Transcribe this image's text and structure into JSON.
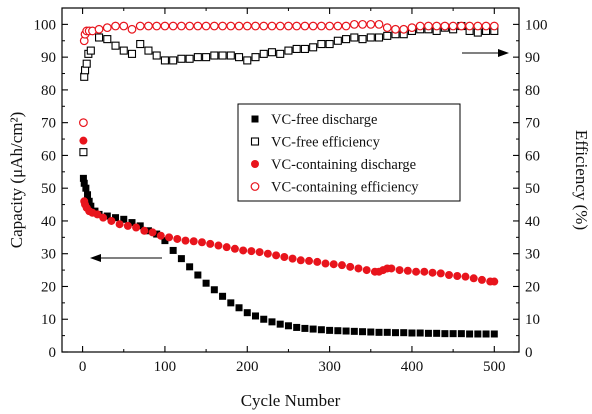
{
  "chart_data": {
    "type": "scatter",
    "xlabel": "Cycle Number",
    "ylabel_left": "Capacity (μAh/cm²)",
    "ylabel_right": "Efficiency (%)",
    "xlim": [
      -25,
      530
    ],
    "ylim_left": [
      0,
      105
    ],
    "ylim_right": [
      0,
      105
    ],
    "x_ticks": [
      0,
      100,
      200,
      300,
      400,
      500
    ],
    "y_ticks": [
      0,
      10,
      20,
      30,
      40,
      50,
      60,
      70,
      80,
      90,
      100
    ],
    "grid": false,
    "legend_position": "center",
    "colors": {
      "black": "#000000",
      "red": "#e8141c"
    },
    "series": [
      {
        "name": "VC-free discharge",
        "axis": "left",
        "marker": "filled-square",
        "color": "#000000",
        "points": [
          [
            1,
            53
          ],
          [
            2,
            51.5
          ],
          [
            4,
            50
          ],
          [
            6,
            48
          ],
          [
            8,
            46
          ],
          [
            10,
            44.5
          ],
          [
            15,
            43
          ],
          [
            20,
            42
          ],
          [
            30,
            41.5
          ],
          [
            40,
            41
          ],
          [
            50,
            40.5
          ],
          [
            60,
            39.5
          ],
          [
            70,
            38.5
          ],
          [
            80,
            37
          ],
          [
            90,
            36
          ],
          [
            100,
            34
          ],
          [
            110,
            31
          ],
          [
            120,
            28.5
          ],
          [
            130,
            26
          ],
          [
            140,
            23.5
          ],
          [
            150,
            21
          ],
          [
            160,
            19
          ],
          [
            170,
            17
          ],
          [
            180,
            15
          ],
          [
            190,
            13.5
          ],
          [
            200,
            12
          ],
          [
            210,
            11
          ],
          [
            220,
            10
          ],
          [
            230,
            9.2
          ],
          [
            240,
            8.5
          ],
          [
            250,
            8
          ],
          [
            260,
            7.5
          ],
          [
            270,
            7.2
          ],
          [
            280,
            7
          ],
          [
            290,
            6.8
          ],
          [
            300,
            6.6
          ],
          [
            310,
            6.5
          ],
          [
            320,
            6.4
          ],
          [
            330,
            6.3
          ],
          [
            340,
            6.2
          ],
          [
            350,
            6.1
          ],
          [
            360,
            6
          ],
          [
            370,
            6
          ],
          [
            380,
            5.9
          ],
          [
            390,
            5.9
          ],
          [
            400,
            5.8
          ],
          [
            410,
            5.8
          ],
          [
            420,
            5.7
          ],
          [
            430,
            5.7
          ],
          [
            440,
            5.6
          ],
          [
            450,
            5.6
          ],
          [
            460,
            5.6
          ],
          [
            470,
            5.5
          ],
          [
            480,
            5.5
          ],
          [
            490,
            5.5
          ],
          [
            500,
            5.5
          ]
        ]
      },
      {
        "name": "VC-free efficiency",
        "axis": "right",
        "marker": "open-square",
        "color": "#000000",
        "points": [
          [
            1,
            61
          ],
          [
            2,
            84
          ],
          [
            3,
            86
          ],
          [
            5,
            88
          ],
          [
            7,
            91
          ],
          [
            10,
            92
          ],
          [
            20,
            96
          ],
          [
            30,
            95.5
          ],
          [
            40,
            93.5
          ],
          [
            50,
            92
          ],
          [
            60,
            91
          ],
          [
            70,
            94
          ],
          [
            80,
            92
          ],
          [
            90,
            90.5
          ],
          [
            100,
            89
          ],
          [
            110,
            89
          ],
          [
            120,
            89.5
          ],
          [
            130,
            89.5
          ],
          [
            140,
            90
          ],
          [
            150,
            90
          ],
          [
            160,
            90.5
          ],
          [
            170,
            90.5
          ],
          [
            180,
            90.5
          ],
          [
            190,
            90
          ],
          [
            200,
            89
          ],
          [
            210,
            90
          ],
          [
            220,
            91
          ],
          [
            230,
            91.5
          ],
          [
            240,
            91
          ],
          [
            250,
            92
          ],
          [
            260,
            92.5
          ],
          [
            270,
            92.5
          ],
          [
            280,
            93
          ],
          [
            290,
            94
          ],
          [
            300,
            94
          ],
          [
            310,
            95
          ],
          [
            320,
            95.5
          ],
          [
            330,
            96
          ],
          [
            340,
            95.5
          ],
          [
            350,
            96
          ],
          [
            360,
            96
          ],
          [
            370,
            96.5
          ],
          [
            380,
            97
          ],
          [
            390,
            97
          ],
          [
            400,
            98
          ],
          [
            410,
            98.5
          ],
          [
            420,
            98.5
          ],
          [
            430,
            98
          ],
          [
            440,
            99
          ],
          [
            450,
            98.5
          ],
          [
            460,
            99.5
          ],
          [
            470,
            98
          ],
          [
            480,
            97.5
          ],
          [
            490,
            98
          ],
          [
            500,
            98
          ]
        ]
      },
      {
        "name": "VC-containing discharge",
        "axis": "left",
        "marker": "filled-circle",
        "color": "#e8141c",
        "points": [
          [
            1,
            64.5
          ],
          [
            2,
            46
          ],
          [
            3,
            45
          ],
          [
            5,
            44
          ],
          [
            8,
            43
          ],
          [
            12,
            42.5
          ],
          [
            18,
            42
          ],
          [
            25,
            41
          ],
          [
            35,
            40
          ],
          [
            45,
            39
          ],
          [
            55,
            38.5
          ],
          [
            65,
            38
          ],
          [
            75,
            37
          ],
          [
            85,
            36.5
          ],
          [
            95,
            35.5
          ],
          [
            105,
            35
          ],
          [
            115,
            34.5
          ],
          [
            125,
            34
          ],
          [
            135,
            33.8
          ],
          [
            145,
            33.5
          ],
          [
            155,
            33
          ],
          [
            165,
            32.5
          ],
          [
            175,
            32
          ],
          [
            185,
            31.5
          ],
          [
            195,
            31
          ],
          [
            205,
            30.8
          ],
          [
            215,
            30.5
          ],
          [
            225,
            30
          ],
          [
            235,
            29.5
          ],
          [
            245,
            29
          ],
          [
            255,
            28.5
          ],
          [
            265,
            28
          ],
          [
            275,
            27.8
          ],
          [
            285,
            27.5
          ],
          [
            295,
            27
          ],
          [
            305,
            26.8
          ],
          [
            315,
            26.5
          ],
          [
            325,
            26
          ],
          [
            335,
            25.5
          ],
          [
            345,
            25
          ],
          [
            355,
            24.5
          ],
          [
            360,
            24.5
          ],
          [
            365,
            25
          ],
          [
            370,
            25.5
          ],
          [
            375,
            25.5
          ],
          [
            385,
            25
          ],
          [
            395,
            24.8
          ],
          [
            405,
            24.5
          ],
          [
            415,
            24.5
          ],
          [
            425,
            24.2
          ],
          [
            435,
            24
          ],
          [
            445,
            23.5
          ],
          [
            455,
            23.2
          ],
          [
            465,
            23
          ],
          [
            475,
            22.5
          ],
          [
            485,
            22
          ],
          [
            495,
            21.5
          ],
          [
            500,
            21.5
          ]
        ]
      },
      {
        "name": "VC-containing efficiency",
        "axis": "right",
        "marker": "open-circle",
        "color": "#e8141c",
        "points": [
          [
            1,
            70
          ],
          [
            2,
            95
          ],
          [
            3,
            97
          ],
          [
            5,
            98
          ],
          [
            8,
            98
          ],
          [
            12,
            98
          ],
          [
            20,
            98.5
          ],
          [
            30,
            99
          ],
          [
            40,
            99.5
          ],
          [
            50,
            99.5
          ],
          [
            60,
            98.5
          ],
          [
            70,
            99.5
          ],
          [
            80,
            99.5
          ],
          [
            90,
            99.5
          ],
          [
            100,
            99.5
          ],
          [
            110,
            99.5
          ],
          [
            120,
            99.5
          ],
          [
            130,
            99.5
          ],
          [
            140,
            99.5
          ],
          [
            150,
            99.5
          ],
          [
            160,
            99.5
          ],
          [
            170,
            99.5
          ],
          [
            180,
            99.5
          ],
          [
            190,
            99.5
          ],
          [
            200,
            99.5
          ],
          [
            210,
            99.5
          ],
          [
            220,
            99.5
          ],
          [
            230,
            99.5
          ],
          [
            240,
            99.5
          ],
          [
            250,
            99.5
          ],
          [
            260,
            99.5
          ],
          [
            270,
            99.5
          ],
          [
            280,
            99.5
          ],
          [
            290,
            99.5
          ],
          [
            300,
            99.5
          ],
          [
            310,
            99.5
          ],
          [
            320,
            99.5
          ],
          [
            330,
            100
          ],
          [
            340,
            100
          ],
          [
            350,
            100
          ],
          [
            360,
            100
          ],
          [
            370,
            99
          ],
          [
            380,
            98.5
          ],
          [
            390,
            98.5
          ],
          [
            400,
            99
          ],
          [
            410,
            99.5
          ],
          [
            420,
            99.5
          ],
          [
            430,
            99.5
          ],
          [
            440,
            99.5
          ],
          [
            450,
            99.5
          ],
          [
            460,
            99.5
          ],
          [
            470,
            99.5
          ],
          [
            480,
            99.5
          ],
          [
            490,
            99.5
          ],
          [
            500,
            99.5
          ]
        ]
      }
    ],
    "annotations": [
      {
        "type": "arrow",
        "direction": "left",
        "meaning": "capacity-axis"
      },
      {
        "type": "arrow",
        "direction": "right",
        "meaning": "efficiency-axis"
      }
    ]
  }
}
